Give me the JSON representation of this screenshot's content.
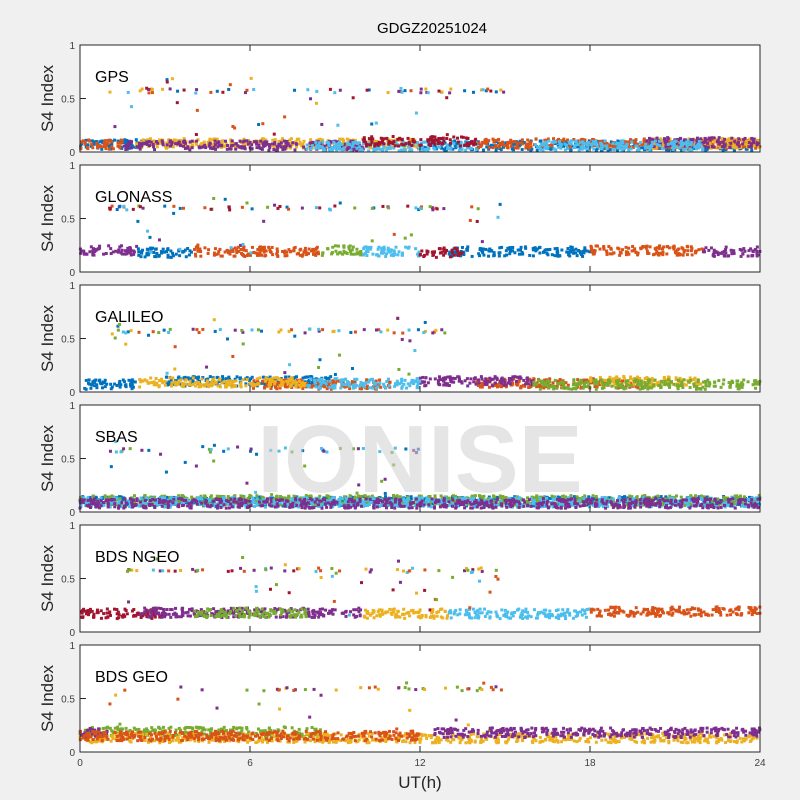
{
  "chart_data": {
    "type": "scatter",
    "title": "GDGZ20251024",
    "xlabel": "UT(h)",
    "ylabel": "S4 Index",
    "xlim": [
      0,
      24
    ],
    "ylim": [
      0,
      1
    ],
    "xticks": [
      "0",
      "6",
      "12",
      "18",
      "24"
    ],
    "yticks": [
      "0",
      "0.5",
      "1"
    ],
    "grid": false,
    "watermark": "IONISE",
    "colors": [
      "#0072BD",
      "#D95319",
      "#EDB120",
      "#7E2F8E",
      "#77AC30",
      "#4DBEEE",
      "#A2142F"
    ],
    "panels": [
      {
        "label": "GPS",
        "series": [
          {
            "color": "#0072BD",
            "segments": [
              [
                0,
                2.5,
                0.07
              ],
              [
                12,
                24,
                0.06
              ]
            ]
          },
          {
            "color": "#D95319",
            "segments": [
              [
                0,
                1.5,
                0.07
              ],
              [
                14,
                24,
                0.08
              ]
            ]
          },
          {
            "color": "#EDB120",
            "segments": [
              [
                2,
                12,
                0.08
              ],
              [
                20,
                24,
                0.08
              ]
            ]
          },
          {
            "color": "#7E2F8E",
            "segments": [
              [
                1.5,
                10,
                0.06
              ],
              [
                20,
                24,
                0.09
              ]
            ]
          },
          {
            "color": "#4DBEEE",
            "segments": [
              [
                8,
                14,
                0.05
              ],
              [
                16,
                22,
                0.06
              ]
            ]
          },
          {
            "color": "#A2142F",
            "segments": [
              [
                10,
                14,
                0.1
              ]
            ]
          }
        ],
        "high_band": {
          "t": [
            1,
            15
          ],
          "s4": 0.57
        }
      },
      {
        "label": "GLONASS",
        "series": [
          {
            "color": "#7E2F8E",
            "segments": [
              [
                0,
                2,
                0.2
              ],
              [
                22,
                24,
                0.19
              ]
            ]
          },
          {
            "color": "#0072BD",
            "segments": [
              [
                2,
                4,
                0.18
              ],
              [
                13,
                18,
                0.19
              ]
            ]
          },
          {
            "color": "#D95319",
            "segments": [
              [
                4,
                8.5,
                0.19
              ],
              [
                18,
                22,
                0.2
              ]
            ]
          },
          {
            "color": "#77AC30",
            "segments": [
              [
                8.5,
                10,
                0.2
              ]
            ]
          },
          {
            "color": "#4DBEEE",
            "segments": [
              [
                10,
                12,
                0.19
              ]
            ]
          },
          {
            "color": "#A2142F",
            "segments": [
              [
                12,
                13.5,
                0.18
              ]
            ]
          }
        ],
        "high_band": {
          "t": [
            1,
            15
          ],
          "s4": 0.6
        }
      },
      {
        "label": "GALILEO",
        "series": [
          {
            "color": "#0072BD",
            "segments": [
              [
                0,
                2,
                0.07
              ],
              [
                3,
                9,
                0.1
              ]
            ]
          },
          {
            "color": "#D95319",
            "segments": [
              [
                6,
                11,
                0.07
              ],
              [
                14,
                20,
                0.08
              ]
            ]
          },
          {
            "color": "#EDB120",
            "segments": [
              [
                2,
                8,
                0.09
              ],
              [
                18,
                22,
                0.1
              ]
            ]
          },
          {
            "color": "#7E2F8E",
            "segments": [
              [
                12,
                16,
                0.1
              ]
            ]
          },
          {
            "color": "#77AC30",
            "segments": [
              [
                16,
                24,
                0.07
              ]
            ]
          },
          {
            "color": "#4DBEEE",
            "segments": [
              [
                8,
                12,
                0.08
              ]
            ]
          }
        ],
        "high_band": {
          "t": [
            1,
            13
          ],
          "s4": 0.57
        }
      },
      {
        "label": "SBAS",
        "series": [
          {
            "color": "#0072BD",
            "segments": [
              [
                0,
                24,
                0.1
              ]
            ]
          },
          {
            "color": "#77AC30",
            "segments": [
              [
                0,
                24,
                0.11
              ]
            ]
          },
          {
            "color": "#4DBEEE",
            "segments": [
              [
                0,
                24,
                0.09
              ]
            ]
          },
          {
            "color": "#7E2F8E",
            "segments": [
              [
                0,
                24,
                0.08
              ]
            ]
          }
        ],
        "high_band": {
          "t": [
            1,
            12
          ],
          "s4": 0.58
        }
      },
      {
        "label": "BDS NGEO",
        "series": [
          {
            "color": "#A2142F",
            "segments": [
              [
                0,
                3,
                0.17
              ]
            ]
          },
          {
            "color": "#7E2F8E",
            "segments": [
              [
                2,
                10,
                0.18
              ]
            ]
          },
          {
            "color": "#EDB120",
            "segments": [
              [
                10,
                13,
                0.17
              ]
            ]
          },
          {
            "color": "#4DBEEE",
            "segments": [
              [
                13,
                18,
                0.17
              ]
            ]
          },
          {
            "color": "#D95319",
            "segments": [
              [
                18,
                24,
                0.19
              ]
            ]
          },
          {
            "color": "#77AC30",
            "segments": [
              [
                4,
                8,
                0.18
              ]
            ]
          }
        ],
        "high_band": {
          "t": [
            1,
            15
          ],
          "s4": 0.58
        }
      },
      {
        "label": "BDS GEO",
        "series": [
          {
            "color": "#77AC30",
            "segments": [
              [
                0,
                8.5,
                0.19
              ]
            ]
          },
          {
            "color": "#EDB120",
            "segments": [
              [
                0,
                24,
                0.13
              ]
            ]
          },
          {
            "color": "#7E2F8E",
            "segments": [
              [
                0,
                1,
                0.18
              ],
              [
                12.5,
                24,
                0.18
              ]
            ]
          },
          {
            "color": "#D95319",
            "segments": [
              [
                0,
                12,
                0.15
              ]
            ]
          }
        ],
        "high_band": {
          "t": [
            1,
            15
          ],
          "s4": 0.59
        }
      }
    ]
  }
}
